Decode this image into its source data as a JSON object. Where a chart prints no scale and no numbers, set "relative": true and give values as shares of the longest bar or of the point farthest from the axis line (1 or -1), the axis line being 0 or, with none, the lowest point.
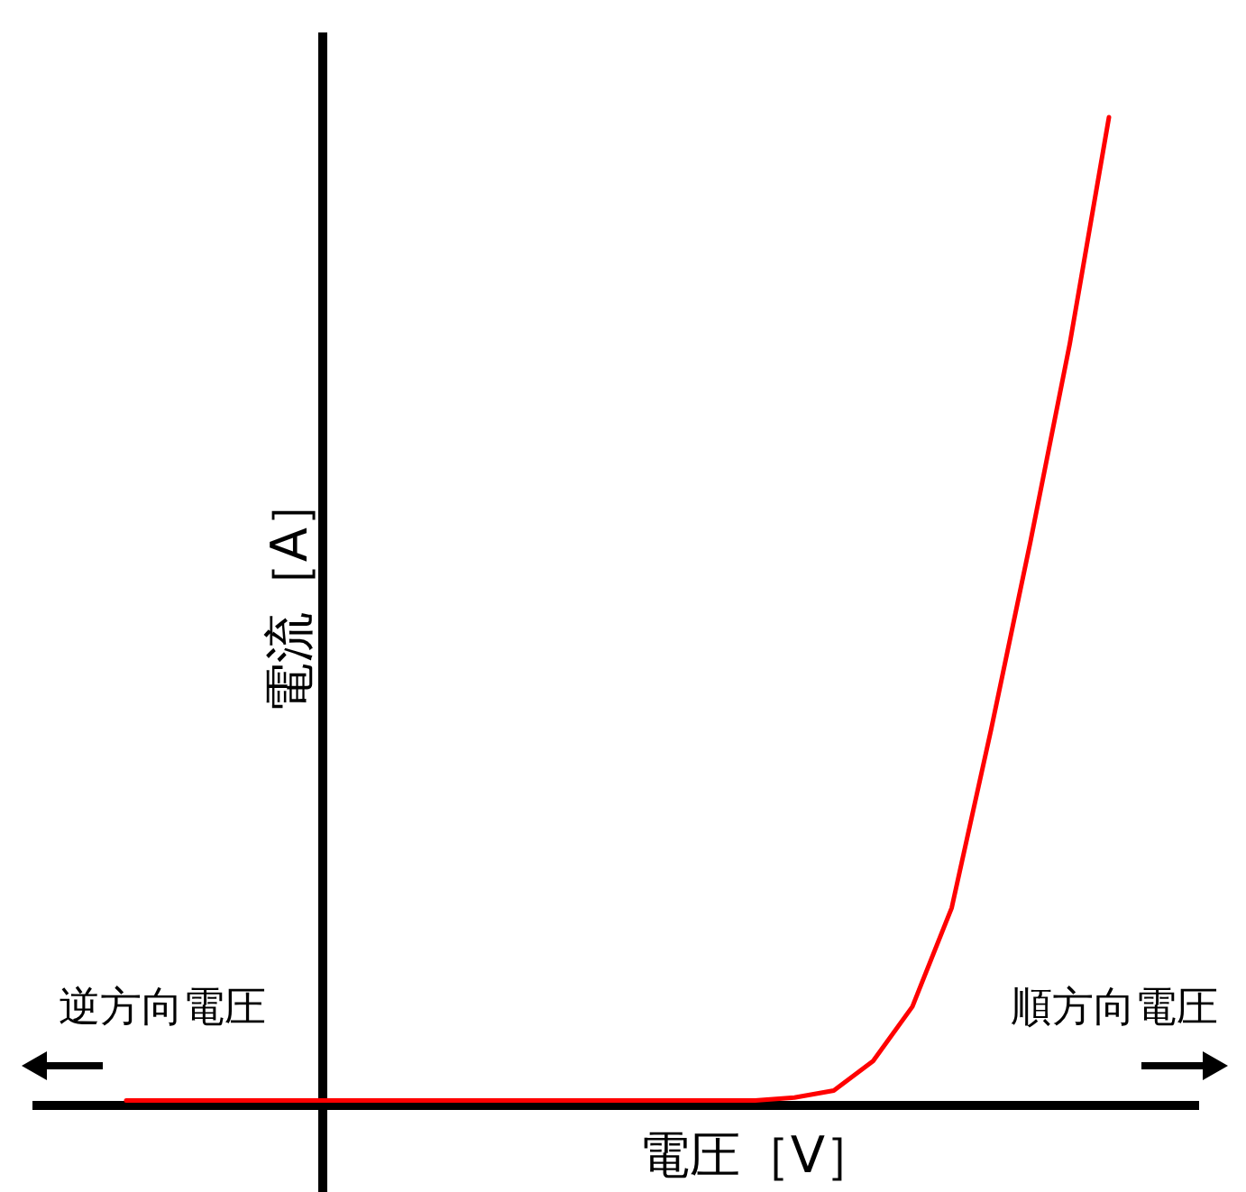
{
  "chart_data": {
    "type": "line",
    "relative": true,
    "xlabel": "電圧［V］",
    "ylabel": "電流［A］",
    "annotations": [
      "逆方向電圧",
      "順方向電圧"
    ],
    "categories": [
      null,
      null,
      null,
      null,
      null,
      null,
      null,
      null,
      null,
      null,
      null,
      null,
      null,
      null,
      null,
      null,
      null,
      null,
      null,
      null,
      null,
      null,
      null,
      null,
      null,
      null
    ],
    "series": [
      {
        "color": "#ff0000",
        "values": [
          0.005,
          0.005,
          0.005,
          0.005,
          0.005,
          0.005,
          0.005,
          0.005,
          0.005,
          0.005,
          0.005,
          0.005,
          0.005,
          0.005,
          0.005,
          0.005,
          0.005,
          0.008,
          0.015,
          0.045,
          0.1,
          0.2,
          0.38,
          0.57,
          0.77,
          1
        ]
      }
    ]
  }
}
